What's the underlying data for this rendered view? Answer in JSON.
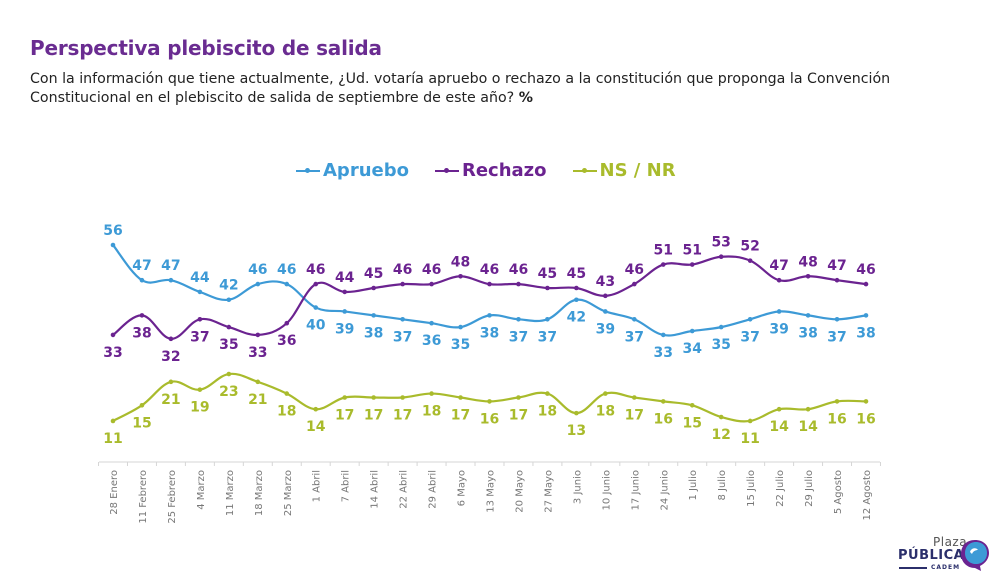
{
  "header": {
    "title": "Perspectiva plebiscito de salida",
    "subtitle": "Con la información que tiene actualmente, ¿Ud. votaría apruebo o rechazo a la constitución que proponga la Convención Constitucional en el plebiscito de salida de septiembre de este año?",
    "subtitle_unit": "%"
  },
  "logo": {
    "line1": "Plaza",
    "line2": "PÚBLICA",
    "line3": "CADEM"
  },
  "chart_data": {
    "type": "line",
    "title": "Perspectiva plebiscito de salida",
    "xlabel": "",
    "ylabel": "%",
    "ylim": [
      0,
      60
    ],
    "grid": false,
    "legend": "top-center",
    "categories": [
      "28 Enero",
      "11 Febrero",
      "25 Febrero",
      "4 Marzo",
      "11 Marzo",
      "18 Marzo",
      "25 Marzo",
      "1 Abril",
      "7 Abril",
      "14 Abril",
      "22 Abril",
      "29 Abril",
      "6 Mayo",
      "13 Mayo",
      "20 Mayo",
      "27 Mayo",
      "3 Junio",
      "10 Junio",
      "17 Junio",
      "24 Junio",
      "1 Julio",
      "8 Julio",
      "15 Julio",
      "22 Julio",
      "29 Julio",
      "5 Agosto",
      "12 Agosto"
    ],
    "series": [
      {
        "name": "Apruebo",
        "color": "#3d9ad6",
        "label_pos": "mixed",
        "values": [
          56,
          47,
          47,
          44,
          42,
          46,
          46,
          40,
          39,
          38,
          37,
          36,
          35,
          38,
          37,
          37,
          42,
          39,
          37,
          33,
          34,
          35,
          37,
          39,
          38,
          37,
          38
        ]
      },
      {
        "name": "Rechazo",
        "color": "#6b2390",
        "values": [
          33,
          38,
          32,
          37,
          35,
          33,
          36,
          46,
          44,
          45,
          46,
          46,
          48,
          46,
          46,
          45,
          45,
          43,
          46,
          51,
          51,
          53,
          52,
          47,
          48,
          47,
          46
        ]
      },
      {
        "name": "NS / NR",
        "color": "#a9bb2c",
        "values": [
          11,
          15,
          21,
          19,
          23,
          21,
          18,
          14,
          17,
          17,
          17,
          18,
          17,
          16,
          17,
          18,
          13,
          18,
          17,
          16,
          15,
          12,
          11,
          14,
          14,
          16,
          16
        ]
      }
    ]
  }
}
